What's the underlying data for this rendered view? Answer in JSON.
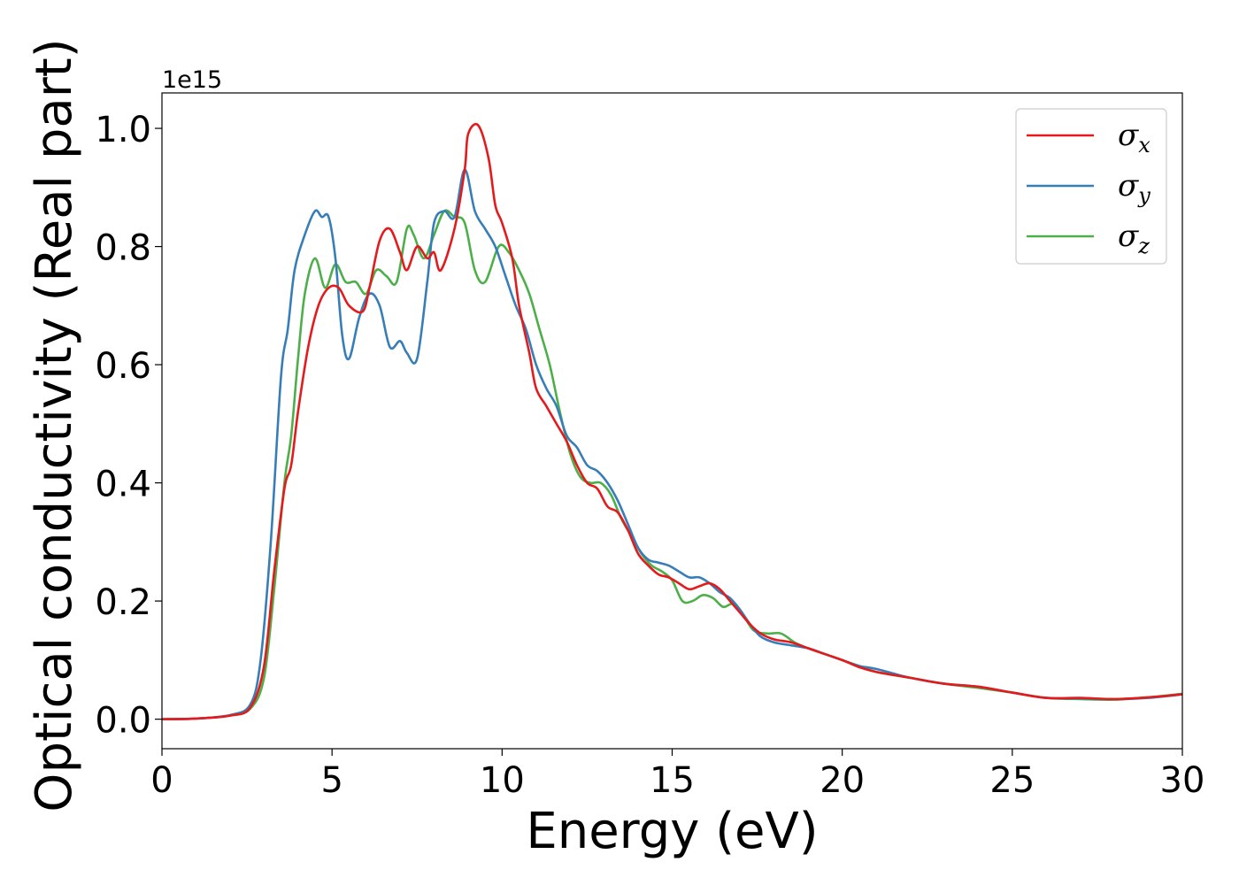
{
  "chart_data": {
    "type": "line",
    "title": "",
    "xlabel": "Energy (eV)",
    "ylabel": "Optical conductivity (Real part)",
    "y_offset_label": "1e15",
    "xlim": [
      0,
      30
    ],
    "ylim": [
      -0.05,
      1.06
    ],
    "x_ticks": [
      0,
      5,
      10,
      15,
      20,
      25,
      30
    ],
    "x_tick_labels": [
      "0",
      "5",
      "10",
      "15",
      "20",
      "25",
      "30"
    ],
    "y_ticks": [
      0.0,
      0.2,
      0.4,
      0.6,
      0.8,
      1.0
    ],
    "y_tick_labels": [
      "0.0",
      "0.2",
      "0.4",
      "0.6",
      "0.8",
      "1.0"
    ],
    "grid": false,
    "legend_position": "top-right",
    "series": [
      {
        "name": "σx",
        "symbol": "σ",
        "subscript": "x",
        "color": "#e41a1c",
        "points": [
          [
            0,
            0
          ],
          [
            1,
            0.001
          ],
          [
            2,
            0.006
          ],
          [
            2.6,
            0.02
          ],
          [
            3.0,
            0.09
          ],
          [
            3.3,
            0.25
          ],
          [
            3.6,
            0.39
          ],
          [
            3.8,
            0.43
          ],
          [
            4.0,
            0.52
          ],
          [
            4.3,
            0.63
          ],
          [
            4.6,
            0.7
          ],
          [
            4.9,
            0.73
          ],
          [
            5.2,
            0.73
          ],
          [
            5.5,
            0.7
          ],
          [
            5.9,
            0.69
          ],
          [
            6.1,
            0.73
          ],
          [
            6.4,
            0.81
          ],
          [
            6.7,
            0.83
          ],
          [
            7.0,
            0.79
          ],
          [
            7.2,
            0.76
          ],
          [
            7.5,
            0.8
          ],
          [
            7.8,
            0.78
          ],
          [
            8.0,
            0.79
          ],
          [
            8.2,
            0.76
          ],
          [
            8.6,
            0.83
          ],
          [
            8.9,
            0.93
          ],
          [
            9.0,
            0.99
          ],
          [
            9.3,
            1.005
          ],
          [
            9.6,
            0.95
          ],
          [
            9.8,
            0.87
          ],
          [
            10.0,
            0.84
          ],
          [
            10.3,
            0.78
          ],
          [
            10.5,
            0.7
          ],
          [
            10.8,
            0.62
          ],
          [
            11.0,
            0.56
          ],
          [
            11.3,
            0.53
          ],
          [
            11.6,
            0.5
          ],
          [
            11.9,
            0.47
          ],
          [
            12.2,
            0.43
          ],
          [
            12.5,
            0.4
          ],
          [
            12.8,
            0.39
          ],
          [
            13.1,
            0.36
          ],
          [
            13.4,
            0.35
          ],
          [
            13.7,
            0.32
          ],
          [
            14.0,
            0.28
          ],
          [
            14.3,
            0.26
          ],
          [
            14.6,
            0.245
          ],
          [
            14.9,
            0.24
          ],
          [
            15.2,
            0.23
          ],
          [
            15.5,
            0.22
          ],
          [
            15.8,
            0.225
          ],
          [
            16.1,
            0.23
          ],
          [
            16.4,
            0.22
          ],
          [
            16.7,
            0.2
          ],
          [
            17.0,
            0.18
          ],
          [
            17.3,
            0.16
          ],
          [
            17.6,
            0.145
          ],
          [
            18.0,
            0.135
          ],
          [
            18.5,
            0.13
          ],
          [
            19,
            0.12
          ],
          [
            19.5,
            0.11
          ],
          [
            20,
            0.1
          ],
          [
            20.5,
            0.088
          ],
          [
            21,
            0.08
          ],
          [
            22,
            0.07
          ],
          [
            23,
            0.06
          ],
          [
            24,
            0.055
          ],
          [
            25,
            0.045
          ],
          [
            26,
            0.036
          ],
          [
            27,
            0.036
          ],
          [
            28,
            0.034
          ],
          [
            29,
            0.037
          ],
          [
            30,
            0.042
          ]
        ]
      },
      {
        "name": "σy",
        "symbol": "σ",
        "subscript": "y",
        "color": "#377eb8",
        "points": [
          [
            0,
            0
          ],
          [
            1,
            0.001
          ],
          [
            2,
            0.007
          ],
          [
            2.6,
            0.025
          ],
          [
            2.9,
            0.1
          ],
          [
            3.2,
            0.3
          ],
          [
            3.5,
            0.58
          ],
          [
            3.7,
            0.66
          ],
          [
            3.9,
            0.76
          ],
          [
            4.2,
            0.82
          ],
          [
            4.5,
            0.86
          ],
          [
            4.7,
            0.85
          ],
          [
            4.9,
            0.85
          ],
          [
            5.1,
            0.78
          ],
          [
            5.3,
            0.65
          ],
          [
            5.5,
            0.61
          ],
          [
            5.8,
            0.68
          ],
          [
            6.1,
            0.72
          ],
          [
            6.4,
            0.7
          ],
          [
            6.7,
            0.63
          ],
          [
            7.0,
            0.64
          ],
          [
            7.2,
            0.62
          ],
          [
            7.5,
            0.61
          ],
          [
            7.8,
            0.74
          ],
          [
            8.0,
            0.84
          ],
          [
            8.3,
            0.86
          ],
          [
            8.6,
            0.85
          ],
          [
            8.9,
            0.93
          ],
          [
            9.2,
            0.86
          ],
          [
            9.5,
            0.83
          ],
          [
            9.8,
            0.8
          ],
          [
            10.1,
            0.75
          ],
          [
            10.4,
            0.7
          ],
          [
            10.7,
            0.66
          ],
          [
            11.0,
            0.6
          ],
          [
            11.3,
            0.56
          ],
          [
            11.6,
            0.53
          ],
          [
            11.9,
            0.48
          ],
          [
            12.2,
            0.46
          ],
          [
            12.5,
            0.43
          ],
          [
            12.8,
            0.42
          ],
          [
            13.1,
            0.4
          ],
          [
            13.4,
            0.37
          ],
          [
            13.7,
            0.33
          ],
          [
            14.0,
            0.29
          ],
          [
            14.3,
            0.27
          ],
          [
            14.6,
            0.265
          ],
          [
            14.9,
            0.26
          ],
          [
            15.2,
            0.25
          ],
          [
            15.5,
            0.24
          ],
          [
            15.8,
            0.24
          ],
          [
            16.1,
            0.23
          ],
          [
            16.4,
            0.215
          ],
          [
            16.7,
            0.205
          ],
          [
            17.0,
            0.185
          ],
          [
            17.3,
            0.16
          ],
          [
            17.6,
            0.14
          ],
          [
            18.0,
            0.13
          ],
          [
            18.5,
            0.125
          ],
          [
            19,
            0.12
          ],
          [
            19.5,
            0.11
          ],
          [
            20,
            0.1
          ],
          [
            20.5,
            0.09
          ],
          [
            21,
            0.085
          ],
          [
            22,
            0.07
          ],
          [
            23,
            0.06
          ],
          [
            24,
            0.055
          ],
          [
            25,
            0.045
          ],
          [
            26,
            0.036
          ],
          [
            27,
            0.035
          ],
          [
            28,
            0.034
          ],
          [
            29,
            0.036
          ],
          [
            30,
            0.042
          ]
        ]
      },
      {
        "name": "σz",
        "symbol": "σ",
        "subscript": "z",
        "color": "#4daf4a",
        "points": [
          [
            0,
            0
          ],
          [
            1,
            0.001
          ],
          [
            2,
            0.006
          ],
          [
            2.6,
            0.018
          ],
          [
            3.0,
            0.07
          ],
          [
            3.3,
            0.22
          ],
          [
            3.6,
            0.4
          ],
          [
            3.8,
            0.48
          ],
          [
            4.0,
            0.61
          ],
          [
            4.2,
            0.72
          ],
          [
            4.5,
            0.78
          ],
          [
            4.8,
            0.73
          ],
          [
            5.1,
            0.77
          ],
          [
            5.4,
            0.74
          ],
          [
            5.7,
            0.74
          ],
          [
            6.0,
            0.72
          ],
          [
            6.3,
            0.76
          ],
          [
            6.6,
            0.75
          ],
          [
            6.9,
            0.74
          ],
          [
            7.2,
            0.83
          ],
          [
            7.4,
            0.82
          ],
          [
            7.7,
            0.78
          ],
          [
            8.0,
            0.82
          ],
          [
            8.3,
            0.86
          ],
          [
            8.6,
            0.85
          ],
          [
            8.9,
            0.84
          ],
          [
            9.2,
            0.76
          ],
          [
            9.5,
            0.74
          ],
          [
            9.9,
            0.8
          ],
          [
            10.2,
            0.79
          ],
          [
            10.5,
            0.76
          ],
          [
            10.8,
            0.72
          ],
          [
            11.1,
            0.66
          ],
          [
            11.4,
            0.6
          ],
          [
            11.7,
            0.52
          ],
          [
            12.0,
            0.45
          ],
          [
            12.3,
            0.41
          ],
          [
            12.6,
            0.4
          ],
          [
            12.9,
            0.4
          ],
          [
            13.2,
            0.38
          ],
          [
            13.5,
            0.34
          ],
          [
            13.8,
            0.31
          ],
          [
            14.1,
            0.28
          ],
          [
            14.4,
            0.26
          ],
          [
            14.7,
            0.25
          ],
          [
            15.0,
            0.235
          ],
          [
            15.3,
            0.2
          ],
          [
            15.6,
            0.2
          ],
          [
            15.9,
            0.21
          ],
          [
            16.2,
            0.205
          ],
          [
            16.5,
            0.19
          ],
          [
            16.8,
            0.195
          ],
          [
            17.1,
            0.175
          ],
          [
            17.4,
            0.15
          ],
          [
            17.8,
            0.145
          ],
          [
            18.2,
            0.145
          ],
          [
            18.6,
            0.13
          ],
          [
            19,
            0.12
          ],
          [
            19.5,
            0.11
          ],
          [
            20,
            0.1
          ],
          [
            20.5,
            0.09
          ],
          [
            21,
            0.08
          ],
          [
            22,
            0.07
          ],
          [
            23,
            0.06
          ],
          [
            24,
            0.053
          ],
          [
            25,
            0.045
          ],
          [
            26,
            0.036
          ],
          [
            27,
            0.034
          ],
          [
            28,
            0.033
          ],
          [
            29,
            0.037
          ],
          [
            30,
            0.043
          ]
        ]
      }
    ]
  }
}
